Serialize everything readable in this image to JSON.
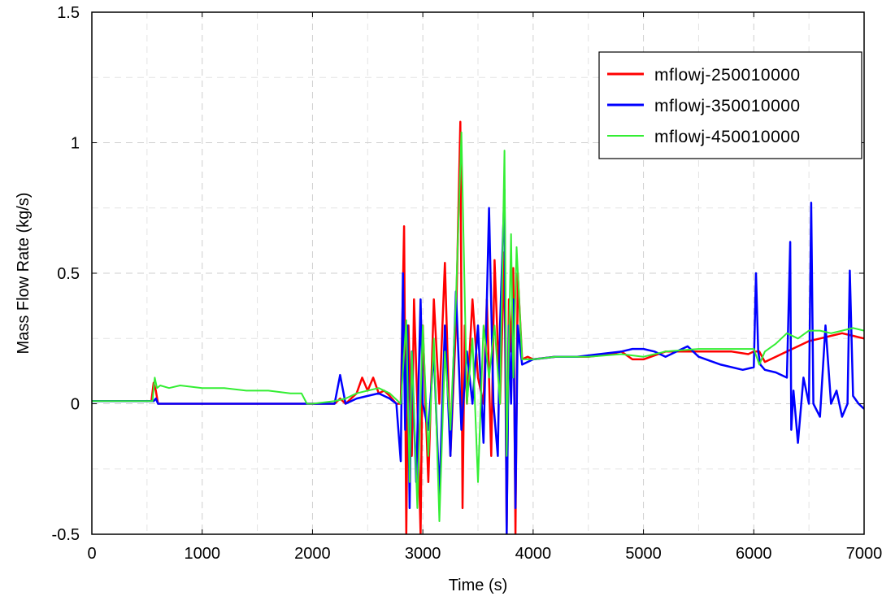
{
  "chart_data": {
    "type": "line",
    "title": "",
    "xlabel": "Time (s)",
    "ylabel": "Mass Flow Rate (kg/s)",
    "xlim": [
      0,
      7000
    ],
    "ylim": [
      -0.5,
      1.5
    ],
    "grid": true,
    "legend_position": "top-right",
    "x_ticks": [
      0,
      1000,
      2000,
      3000,
      4000,
      5000,
      6000,
      7000
    ],
    "y_ticks": [
      -0.5,
      0,
      0.5,
      1,
      1.5
    ],
    "x_tick_labels": [
      "0",
      "1000",
      "2000",
      "3000",
      "4000",
      "5000",
      "6000",
      "7000"
    ],
    "y_tick_labels": [
      "-0.5",
      "0",
      "0.5",
      "1",
      "1.5"
    ],
    "series": [
      {
        "name": "mflowj-250010000",
        "color": "#ff0000",
        "x": [
          0,
          200,
          400,
          540,
          560,
          580,
          600,
          700,
          900,
          1200,
          1500,
          1800,
          2000,
          2200,
          2250,
          2300,
          2400,
          2450,
          2500,
          2550,
          2600,
          2650,
          2700,
          2760,
          2800,
          2830,
          2850,
          2870,
          2900,
          2920,
          2950,
          2980,
          3000,
          3050,
          3100,
          3150,
          3200,
          3250,
          3300,
          3340,
          3360,
          3380,
          3400,
          3450,
          3500,
          3550,
          3580,
          3620,
          3650,
          3700,
          3740,
          3760,
          3780,
          3800,
          3820,
          3840,
          3860,
          3900,
          3950,
          4000,
          4200,
          4500,
          4700,
          4800,
          4900,
          5000,
          5200,
          5500,
          5800,
          5950,
          6000,
          6050,
          6100,
          6200,
          6300,
          6400,
          6500,
          6600,
          6700,
          6800,
          6900,
          7000
        ],
        "y": [
          0.01,
          0.01,
          0.01,
          0.01,
          0.08,
          0.05,
          0.0,
          0.0,
          0.0,
          0.0,
          0.0,
          0.0,
          0.0,
          0.0,
          0.02,
          0.0,
          0.04,
          0.1,
          0.05,
          0.1,
          0.04,
          0.05,
          0.03,
          0.0,
          0.0,
          0.68,
          -0.5,
          0.3,
          -0.2,
          0.4,
          0.0,
          -0.5,
          0.3,
          -0.3,
          0.4,
          0.0,
          0.54,
          -0.2,
          0.3,
          1.08,
          -0.4,
          0.3,
          0.0,
          0.4,
          0.1,
          0.0,
          0.4,
          -0.2,
          0.55,
          0.0,
          0.58,
          -0.5,
          0.4,
          0.2,
          0.52,
          -0.5,
          0.5,
          0.17,
          0.18,
          0.17,
          0.18,
          0.18,
          0.19,
          0.2,
          0.17,
          0.17,
          0.2,
          0.2,
          0.2,
          0.19,
          0.2,
          0.2,
          0.16,
          0.18,
          0.2,
          0.22,
          0.24,
          0.25,
          0.26,
          0.27,
          0.26,
          0.25
        ]
      },
      {
        "name": "mflowj-350010000",
        "color": "#0000ff",
        "x": [
          0,
          200,
          400,
          560,
          580,
          600,
          700,
          900,
          1200,
          1500,
          1800,
          2000,
          2200,
          2250,
          2300,
          2400,
          2500,
          2600,
          2700,
          2760,
          2800,
          2820,
          2840,
          2860,
          2880,
          2900,
          2940,
          2980,
          3000,
          3050,
          3100,
          3150,
          3200,
          3250,
          3300,
          3350,
          3400,
          3450,
          3500,
          3550,
          3600,
          3640,
          3680,
          3700,
          3740,
          3760,
          3780,
          3800,
          3820,
          3840,
          3860,
          3900,
          3950,
          4000,
          4200,
          4400,
          4600,
          4800,
          4900,
          5000,
          5100,
          5200,
          5300,
          5400,
          5500,
          5700,
          5900,
          6000,
          6020,
          6040,
          6060,
          6100,
          6200,
          6300,
          6330,
          6340,
          6360,
          6400,
          6450,
          6500,
          6520,
          6540,
          6600,
          6650,
          6700,
          6750,
          6800,
          6850,
          6870,
          6900,
          6950,
          7000
        ],
        "y": [
          0.01,
          0.01,
          0.01,
          0.01,
          0.02,
          0.0,
          0.0,
          0.0,
          0.0,
          0.0,
          0.0,
          0.0,
          0.0,
          0.11,
          0.0,
          0.02,
          0.03,
          0.04,
          0.02,
          0.0,
          -0.22,
          0.5,
          -0.1,
          0.3,
          -0.4,
          0.2,
          -0.3,
          0.4,
          0.0,
          -0.1,
          0.2,
          -0.35,
          0.3,
          -0.2,
          0.43,
          -0.1,
          0.2,
          0.0,
          0.3,
          -0.15,
          0.75,
          0.0,
          -0.2,
          0.3,
          0.82,
          -0.5,
          0.3,
          0.0,
          0.4,
          -0.4,
          0.3,
          0.15,
          0.16,
          0.17,
          0.18,
          0.18,
          0.19,
          0.2,
          0.21,
          0.21,
          0.2,
          0.18,
          0.2,
          0.22,
          0.18,
          0.15,
          0.13,
          0.14,
          0.5,
          0.2,
          0.15,
          0.13,
          0.12,
          0.1,
          0.62,
          -0.1,
          0.05,
          -0.15,
          0.1,
          0.0,
          0.77,
          0.0,
          -0.05,
          0.3,
          0.0,
          0.05,
          -0.05,
          0.0,
          0.51,
          0.03,
          0.0,
          -0.02
        ]
      },
      {
        "name": "mflowj-450010000",
        "color": "#33ee33",
        "x": [
          0,
          200,
          400,
          550,
          570,
          590,
          620,
          700,
          800,
          1000,
          1200,
          1400,
          1600,
          1800,
          1900,
          1950,
          2000,
          2200,
          2300,
          2400,
          2500,
          2600,
          2700,
          2800,
          2850,
          2880,
          2900,
          2950,
          3000,
          3050,
          3100,
          3150,
          3200,
          3250,
          3300,
          3350,
          3400,
          3450,
          3500,
          3550,
          3600,
          3650,
          3700,
          3740,
          3760,
          3800,
          3820,
          3850,
          3900,
          3950,
          4000,
          4200,
          4500,
          4800,
          5000,
          5200,
          5500,
          5800,
          6000,
          6050,
          6100,
          6200,
          6300,
          6400,
          6500,
          6600,
          6700,
          6800,
          6900,
          7000
        ],
        "y": [
          0.01,
          0.01,
          0.01,
          0.01,
          0.1,
          0.06,
          0.07,
          0.06,
          0.07,
          0.06,
          0.06,
          0.05,
          0.05,
          0.04,
          0.04,
          0.0,
          0.0,
          0.01,
          0.02,
          0.04,
          0.05,
          0.06,
          0.04,
          0.0,
          0.32,
          -0.3,
          0.2,
          -0.4,
          0.3,
          -0.2,
          0.25,
          -0.45,
          0.2,
          -0.1,
          0.4,
          1.04,
          0.0,
          0.25,
          -0.3,
          0.3,
          0.1,
          0.3,
          0.0,
          0.97,
          -0.2,
          0.65,
          0.1,
          0.6,
          0.17,
          0.17,
          0.17,
          0.18,
          0.18,
          0.19,
          0.18,
          0.2,
          0.21,
          0.21,
          0.21,
          0.15,
          0.2,
          0.23,
          0.27,
          0.25,
          0.28,
          0.28,
          0.27,
          0.28,
          0.29,
          0.28
        ]
      }
    ]
  }
}
